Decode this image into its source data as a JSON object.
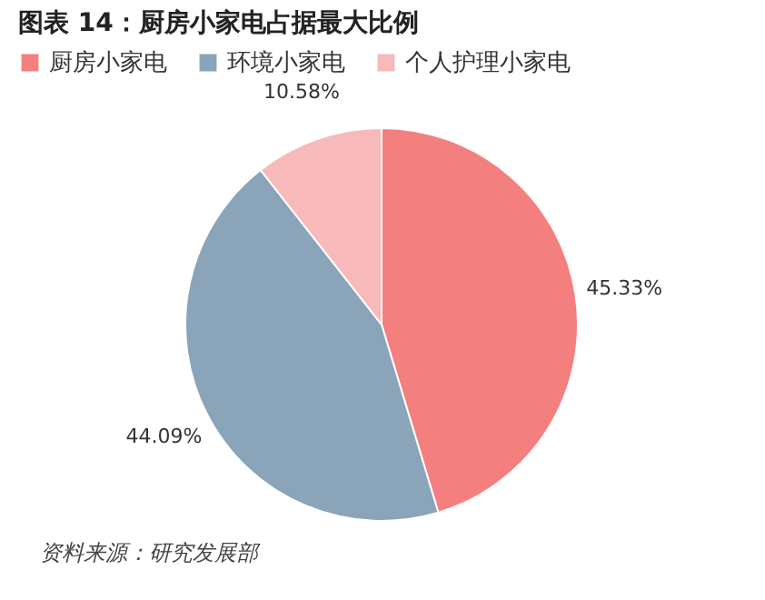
{
  "chart_data": {
    "type": "pie",
    "title": "图表 14：厨房小家电占据最大比例",
    "categories": [
      "厨房小家电",
      "环境小家电",
      "个人护理小家电"
    ],
    "values": [
      45.33,
      44.09,
      10.58
    ],
    "colors": [
      "#f47f7f",
      "#8aa4ba",
      "#f7b9b9"
    ],
    "value_labels": [
      "45.33%",
      "44.09%",
      "10.58%"
    ],
    "legend": "top",
    "annotations": [
      "资料来源：研究发展部"
    ]
  }
}
